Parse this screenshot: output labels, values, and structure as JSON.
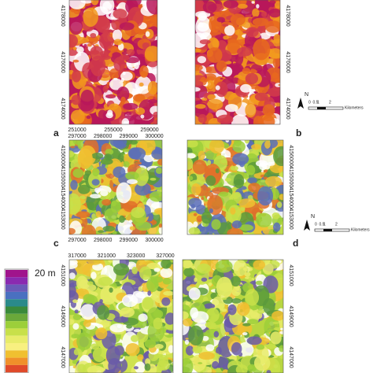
{
  "panels": [
    {
      "label": "a",
      "x_ticks": [
        "251000",
        "255000",
        "259000"
      ],
      "y_ticks": [
        "4178000",
        "4176000",
        "4174000"
      ]
    },
    {
      "label": "b",
      "x_ticks": [],
      "y_ticks": [
        "4178000",
        "4176000",
        "4174000"
      ]
    },
    {
      "label": "c",
      "x_ticks": [
        "297000",
        "298000",
        "299000",
        "300000"
      ],
      "y_ticks": [
        "4156000",
        "4155000",
        "4154000",
        "4153000"
      ]
    },
    {
      "label": "d",
      "x_ticks": [],
      "y_ticks": [
        "4156000",
        "4155000",
        "4154000",
        "4153000"
      ]
    },
    {
      "label": "",
      "x_ticks": [
        "317000",
        "321000",
        "323000",
        "327000"
      ],
      "y_ticks": [
        "4151000",
        "4149000",
        "4147000"
      ]
    },
    {
      "label": "",
      "x_ticks": [],
      "y_ticks": [
        "4151000",
        "4149000",
        "4147000"
      ]
    }
  ],
  "scale_bars": [
    {
      "north": "N",
      "labels": [
        "0",
        "0.5",
        "1",
        "2"
      ],
      "unit": "Kilometers"
    },
    {
      "north": "N",
      "labels": [
        "0",
        "0.5",
        "1",
        "2"
      ],
      "unit": "Kilometers"
    }
  ],
  "legend": {
    "label": "20 m"
  }
}
